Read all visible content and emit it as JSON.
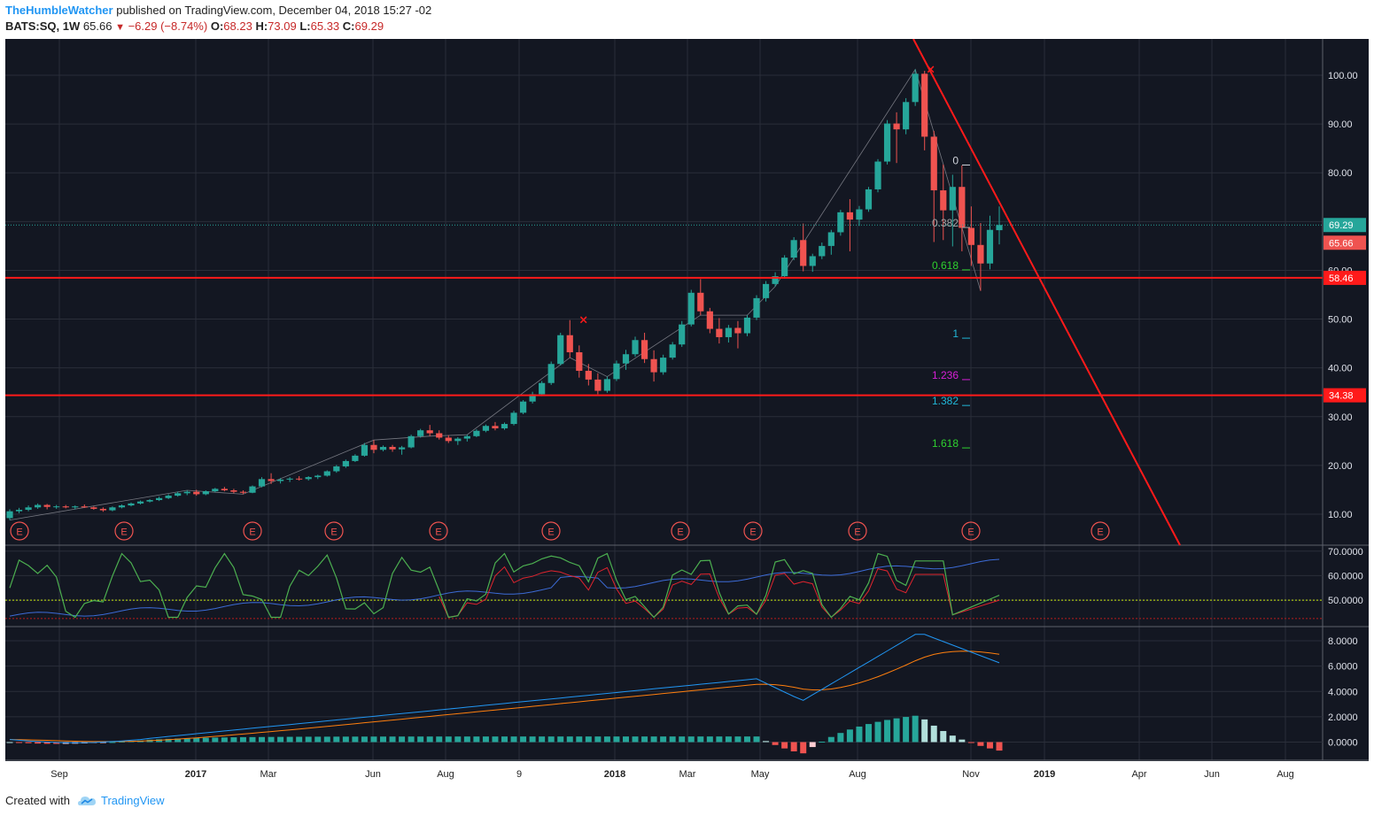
{
  "header": {
    "author": "TheHumbleWatcher",
    "published_text": "published on TradingView.com, December 04, 2018 15:27 -02",
    "symbol": "BATS:SQ, 1W",
    "last": "65.66",
    "change": "−6.29 (−8.74%)",
    "open_label": "O:",
    "open": "68.23",
    "high_label": "H:",
    "high": "73.09",
    "low_label": "L:",
    "low": "65.33",
    "close_label": "C:",
    "close": "69.29"
  },
  "footer": {
    "created_with": "Created with",
    "brand": "TradingView"
  },
  "colors": {
    "background": "#131722",
    "grid": "#2a2e39",
    "up": "#26a69a",
    "down": "#ef5350",
    "red_line": "#ff1a1a",
    "fib_white": "#d1d4dc",
    "fib_gray": "#a5a5a5",
    "fib_green": "#2fd12f",
    "fib_cyan": "#21b6d7",
    "fib_magenta": "#d71fd7",
    "stoch_green": "#4caf50",
    "rsi_blue": "#3c6bd6",
    "stoch_red": "#e0242e",
    "macd_blue": "#2196f3",
    "macd_orange": "#ff7f0e",
    "axis_text": "#e0e3eb",
    "bottom_axis_text": "#222222"
  },
  "chart_data": {
    "type": "candlestick",
    "symbol": "BATS:SQ",
    "interval": "1W",
    "x_ticks": [
      "Sep",
      "2017",
      "Mar",
      "Jun",
      "Aug",
      "9",
      "2018",
      "Mar",
      "May",
      "Aug",
      "Nov",
      "2019",
      "Apr",
      "Jun",
      "Aug"
    ],
    "y_ticks": [
      "100.00",
      "90.00",
      "80.00",
      "70.00",
      "60.00",
      "50.00",
      "40.00",
      "30.00",
      "20.00",
      "10.00"
    ],
    "ylim": [
      5,
      110
    ],
    "price_labels": [
      {
        "value": 69.29,
        "text": "69.29",
        "color": "#26a69a"
      },
      {
        "value": 65.66,
        "text": "65.66",
        "color": "#ef5350"
      },
      {
        "value": 58.46,
        "text": "58.46",
        "color": "#ff1a1a"
      },
      {
        "value": 34.38,
        "text": "34.38",
        "color": "#ff1a1a"
      }
    ],
    "horizontal_lines": [
      58.46,
      34.38
    ],
    "fib_levels": [
      {
        "label": "0",
        "value": 82.5
      },
      {
        "label": "0.382",
        "value": 69.7
      },
      {
        "label": "0.618",
        "value": 61.0
      },
      {
        "label": "1",
        "value": 47.0
      },
      {
        "label": "1.236",
        "value": 38.5
      },
      {
        "label": "1.382",
        "value": 33.2
      },
      {
        "label": "1.618",
        "value": 24.5
      }
    ],
    "earnings_marker": "E",
    "ohlc": [
      [
        9.2,
        11.0,
        8.8,
        10.6
      ],
      [
        10.6,
        11.3,
        10.2,
        10.9
      ],
      [
        10.9,
        11.8,
        10.6,
        11.4
      ],
      [
        11.4,
        12.2,
        11.1,
        11.9
      ],
      [
        11.9,
        12.1,
        11.0,
        11.5
      ],
      [
        11.5,
        11.9,
        11.1,
        11.6
      ],
      [
        11.6,
        11.9,
        11.2,
        11.4
      ],
      [
        11.4,
        11.8,
        11.0,
        11.6
      ],
      [
        11.6,
        12.0,
        11.3,
        11.4
      ],
      [
        11.4,
        11.6,
        10.9,
        11.1
      ],
      [
        11.1,
        11.4,
        10.5,
        10.8
      ],
      [
        10.8,
        11.6,
        10.6,
        11.4
      ],
      [
        11.4,
        12.0,
        11.2,
        11.8
      ],
      [
        11.8,
        12.4,
        11.6,
        12.2
      ],
      [
        12.2,
        12.8,
        12.0,
        12.6
      ],
      [
        12.6,
        13.1,
        12.4,
        12.9
      ],
      [
        12.9,
        13.6,
        12.7,
        13.3
      ],
      [
        13.3,
        14.1,
        13.1,
        13.8
      ],
      [
        13.8,
        14.6,
        13.6,
        14.3
      ],
      [
        14.3,
        14.9,
        13.9,
        14.6
      ],
      [
        14.6,
        15.0,
        13.8,
        14.1
      ],
      [
        14.1,
        14.9,
        13.9,
        14.7
      ],
      [
        14.7,
        15.4,
        14.5,
        15.2
      ],
      [
        15.2,
        15.6,
        14.7,
        14.9
      ],
      [
        14.9,
        15.2,
        14.3,
        14.6
      ],
      [
        14.6,
        14.9,
        14.1,
        14.4
      ],
      [
        14.4,
        15.9,
        14.3,
        15.7
      ],
      [
        15.7,
        17.6,
        15.5,
        17.2
      ],
      [
        17.2,
        18.4,
        16.2,
        16.8
      ],
      [
        16.8,
        17.4,
        16.3,
        17.1
      ],
      [
        17.1,
        17.6,
        16.6,
        17.3
      ],
      [
        17.3,
        17.8,
        16.9,
        17.2
      ],
      [
        17.2,
        17.8,
        16.9,
        17.6
      ],
      [
        17.6,
        18.1,
        17.2,
        17.9
      ],
      [
        17.9,
        19.0,
        17.7,
        18.8
      ],
      [
        18.8,
        20.1,
        18.5,
        19.8
      ],
      [
        19.8,
        21.2,
        19.5,
        20.9
      ],
      [
        20.9,
        22.3,
        20.7,
        22.0
      ],
      [
        22.0,
        24.6,
        21.8,
        24.2
      ],
      [
        24.2,
        25.2,
        22.5,
        23.2
      ],
      [
        23.2,
        24.1,
        22.9,
        23.8
      ],
      [
        23.8,
        24.2,
        22.8,
        23.3
      ],
      [
        23.3,
        24.0,
        22.2,
        23.7
      ],
      [
        23.7,
        26.3,
        23.5,
        26.0
      ],
      [
        26.0,
        27.5,
        25.7,
        27.2
      ],
      [
        27.2,
        28.3,
        26.0,
        26.6
      ],
      [
        26.6,
        27.2,
        25.3,
        25.7
      ],
      [
        25.7,
        26.2,
        24.6,
        25.0
      ],
      [
        25.0,
        25.8,
        24.2,
        25.5
      ],
      [
        25.5,
        26.3,
        24.9,
        26.0
      ],
      [
        26.0,
        27.4,
        25.8,
        27.1
      ],
      [
        27.1,
        28.4,
        26.8,
        28.1
      ],
      [
        28.1,
        28.9,
        27.2,
        27.6
      ],
      [
        27.6,
        28.8,
        27.3,
        28.5
      ],
      [
        28.5,
        31.2,
        28.2,
        30.8
      ],
      [
        30.8,
        33.4,
        30.5,
        33.1
      ],
      [
        33.1,
        35.1,
        32.7,
        34.6
      ],
      [
        34.6,
        37.3,
        34.2,
        36.9
      ],
      [
        36.9,
        41.3,
        36.5,
        40.8
      ],
      [
        40.8,
        47.2,
        40.5,
        46.7
      ],
      [
        46.7,
        49.8,
        42.1,
        43.2
      ],
      [
        43.2,
        44.6,
        38.0,
        39.4
      ],
      [
        39.4,
        40.8,
        36.4,
        37.6
      ],
      [
        37.6,
        38.9,
        34.6,
        35.3
      ],
      [
        35.3,
        38.2,
        34.9,
        37.7
      ],
      [
        37.7,
        41.5,
        37.3,
        40.9
      ],
      [
        40.9,
        43.7,
        39.6,
        42.8
      ],
      [
        42.8,
        46.4,
        42.3,
        45.7
      ],
      [
        45.7,
        47.2,
        41.0,
        41.8
      ],
      [
        41.8,
        43.6,
        37.2,
        39.1
      ],
      [
        39.1,
        42.7,
        38.6,
        42.1
      ],
      [
        42.1,
        45.3,
        41.7,
        44.8
      ],
      [
        44.8,
        49.6,
        44.3,
        48.9
      ],
      [
        48.9,
        56.0,
        48.5,
        55.4
      ],
      [
        55.4,
        58.2,
        50.8,
        51.6
      ],
      [
        51.6,
        52.3,
        47.1,
        48.0
      ],
      [
        48.0,
        50.2,
        45.0,
        46.3
      ],
      [
        46.3,
        48.8,
        45.2,
        48.2
      ],
      [
        48.2,
        49.6,
        44.0,
        47.1
      ],
      [
        47.1,
        50.8,
        46.5,
        50.3
      ],
      [
        50.3,
        54.9,
        49.8,
        54.3
      ],
      [
        54.3,
        57.8,
        53.6,
        57.2
      ],
      [
        57.2,
        59.6,
        56.7,
        58.8
      ],
      [
        58.8,
        63.1,
        58.3,
        62.6
      ],
      [
        62.6,
        66.8,
        62.1,
        66.2
      ],
      [
        66.2,
        69.6,
        59.8,
        60.9
      ],
      [
        60.9,
        63.4,
        59.7,
        62.9
      ],
      [
        62.9,
        65.7,
        62.3,
        65.0
      ],
      [
        65.0,
        68.3,
        63.2,
        67.8
      ],
      [
        67.8,
        72.4,
        67.1,
        71.9
      ],
      [
        71.9,
        74.6,
        63.9,
        70.4
      ],
      [
        70.4,
        73.2,
        69.1,
        72.5
      ],
      [
        72.5,
        77.1,
        72.0,
        76.6
      ],
      [
        76.6,
        82.8,
        76.0,
        82.3
      ],
      [
        82.3,
        90.8,
        81.7,
        90.1
      ],
      [
        90.1,
        92.4,
        82.0,
        88.9
      ],
      [
        88.9,
        95.3,
        87.9,
        94.5
      ],
      [
        94.5,
        101.2,
        93.7,
        100.3
      ],
      [
        100.3,
        100.9,
        84.6,
        87.4
      ],
      [
        87.4,
        88.6,
        65.8,
        76.4
      ],
      [
        76.4,
        81.7,
        66.2,
        72.3
      ],
      [
        72.3,
        79.6,
        64.9,
        77.1
      ],
      [
        77.1,
        81.5,
        63.9,
        68.7
      ],
      [
        68.7,
        73.1,
        60.9,
        65.2
      ],
      [
        65.2,
        69.7,
        55.8,
        61.4
      ],
      [
        61.4,
        71.2,
        60.2,
        68.3
      ],
      [
        68.23,
        73.09,
        65.33,
        69.29
      ]
    ],
    "indicator_rsi": {
      "y_ticks": [
        "70.0000",
        "60.0000",
        "50.0000"
      ],
      "ylim": [
        41,
        71
      ],
      "reference_line": 50
    },
    "indicator_macd": {
      "y_ticks": [
        "8.0000",
        "6.0000",
        "4.0000",
        "2.0000",
        "0.0000"
      ],
      "ylim": [
        -1.5,
        9
      ]
    }
  }
}
